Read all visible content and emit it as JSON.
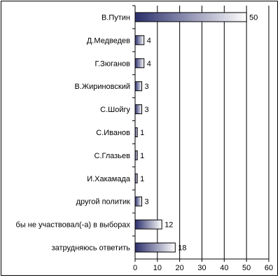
{
  "chart_data": {
    "type": "bar",
    "orientation": "horizontal",
    "title": "",
    "xlabel": "",
    "ylabel": "",
    "categories": [
      "В.Путин",
      "Д.Медведев",
      "Г.Зюганов",
      "В.Жириновский",
      "С.Шойгу",
      "С.Иванов",
      "С.Глазьев",
      "И.Хакамада",
      "другой политик",
      "бы не участвовал(-а) в выборах",
      "затрудняюсь ответить"
    ],
    "values": [
      50,
      4,
      4,
      3,
      3,
      1,
      1,
      1,
      3,
      12,
      18
    ],
    "xlim": [
      0,
      60
    ],
    "xticks": [
      "0",
      "10",
      "20",
      "30",
      "40",
      "50",
      "60"
    ],
    "grid": "vertical",
    "legend": "none",
    "bar_color_dark": "#2b2f6b",
    "bar_color_light": "#ffffff"
  }
}
